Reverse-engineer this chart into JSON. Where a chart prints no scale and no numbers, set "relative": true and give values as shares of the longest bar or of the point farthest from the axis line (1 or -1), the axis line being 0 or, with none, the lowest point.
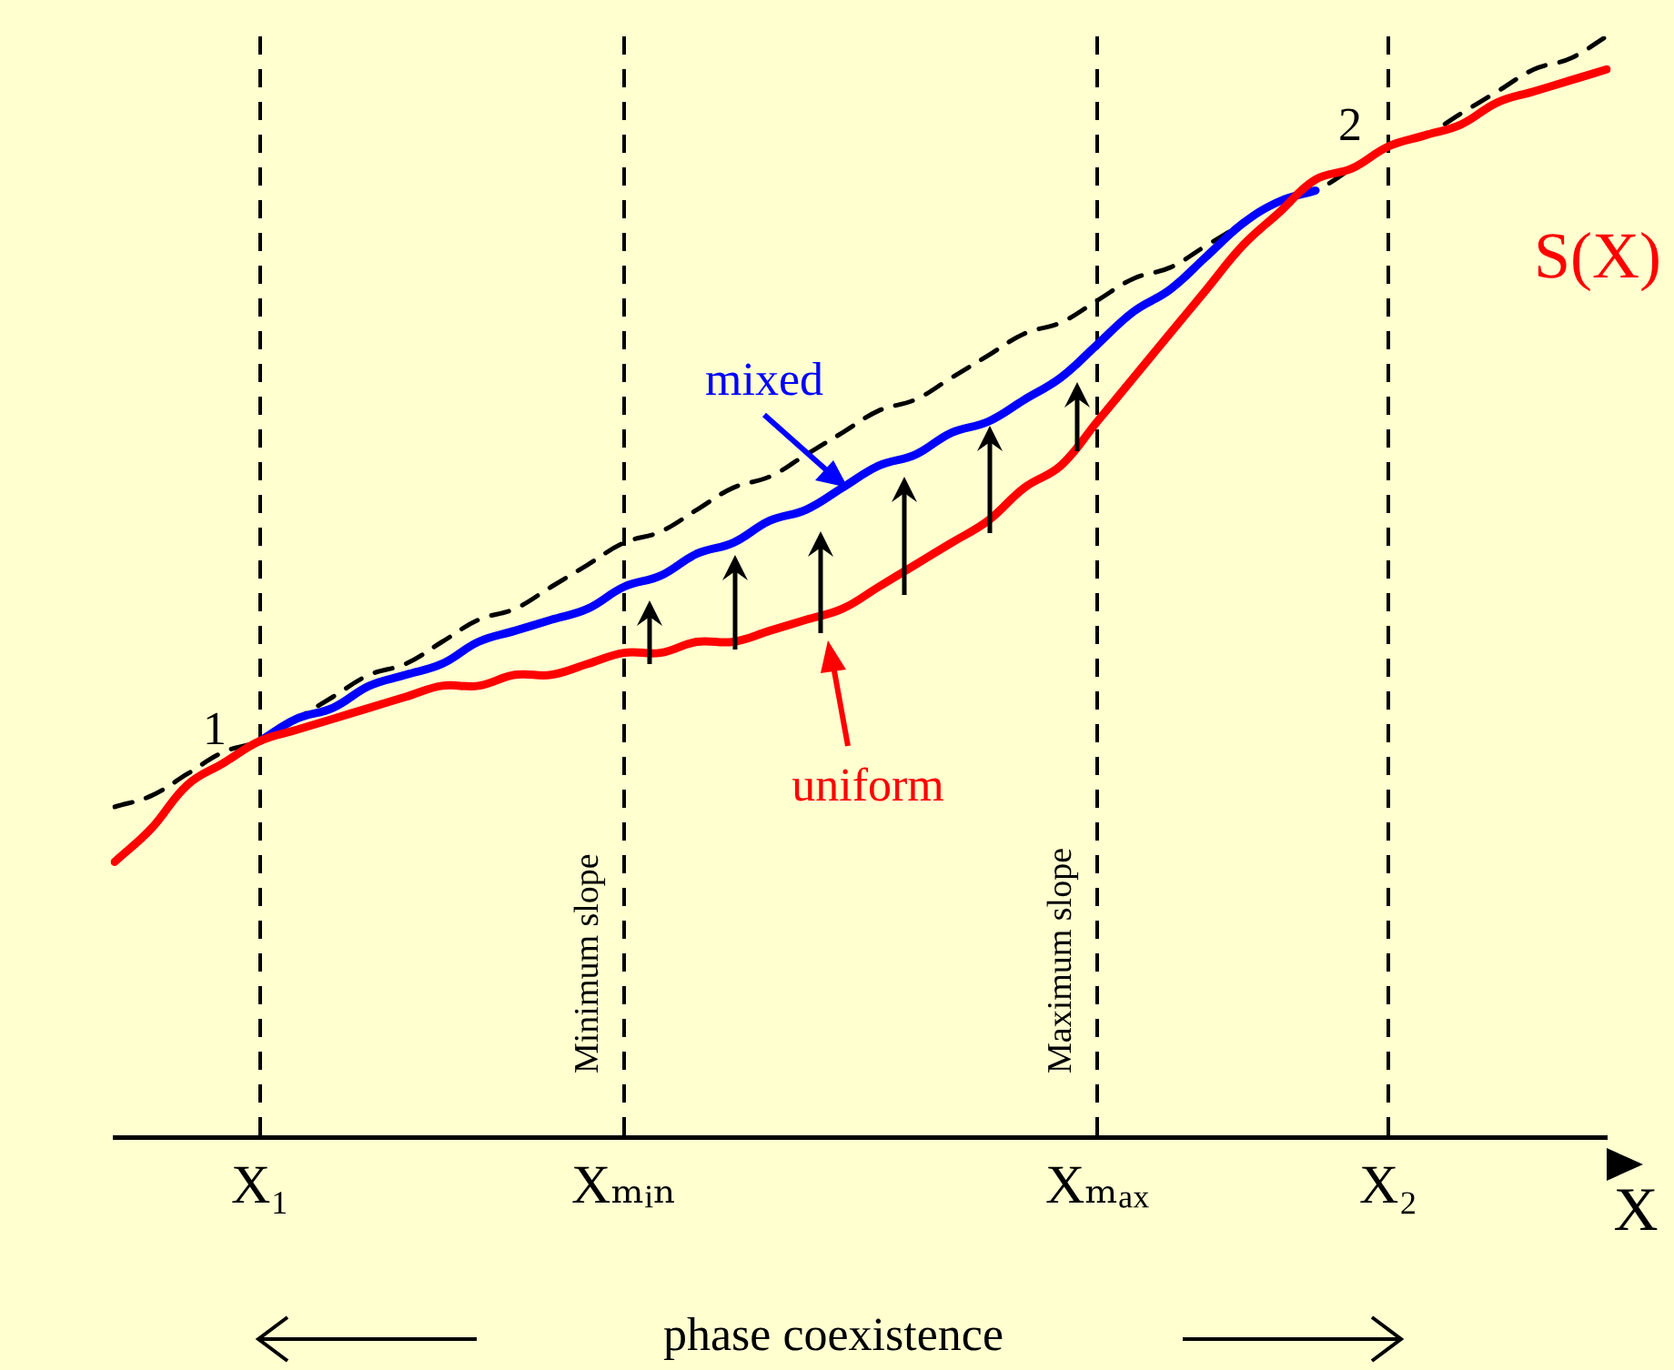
{
  "chart_data": {
    "type": "line",
    "relative": true,
    "xlabel": "X",
    "legend": false,
    "grid": false,
    "tick_labels": "x",
    "categories": [
      null,
      null,
      null,
      null,
      "X₁",
      null,
      null,
      null,
      null,
      null,
      null,
      null,
      null,
      null,
      "Xₘᵢₙ",
      null,
      null,
      null,
      null,
      null,
      null,
      null,
      null,
      null,
      null,
      null,
      null,
      "Xₘₐₓ",
      null,
      null,
      null,
      null,
      null,
      null,
      null,
      "X₂",
      null,
      null,
      null,
      null,
      null,
      null
    ],
    "series": [
      {
        "name": "S(X)",
        "color": "#ff0000",
        "values": [
          0.25,
          0.28,
          0.32,
          0.34,
          0.36,
          0.37,
          0.38,
          0.39,
          0.4,
          0.41,
          0.41,
          0.42,
          0.42,
          0.43,
          0.44,
          0.44,
          0.45,
          0.45,
          0.46,
          0.47,
          0.48,
          0.5,
          0.52,
          0.54,
          0.56,
          0.59,
          0.61,
          0.65,
          0.69,
          0.73,
          0.77,
          0.81,
          0.84,
          0.87,
          0.88,
          0.9,
          0.91,
          0.92,
          0.94,
          0.95,
          0.96,
          0.97
        ]
      },
      {
        "color": "#0000ff",
        "values": [
          null,
          null,
          null,
          null,
          0.36,
          0.38,
          0.39,
          0.41,
          0.42,
          0.43,
          0.45,
          0.46,
          0.47,
          0.48,
          0.5,
          0.51,
          0.53,
          0.54,
          0.56,
          0.57,
          0.59,
          0.61,
          0.62,
          0.64,
          0.65,
          0.67,
          0.69,
          0.72,
          0.75,
          0.77,
          0.8,
          0.83,
          0.85,
          0.86,
          null,
          null,
          null,
          null,
          null,
          null,
          null,
          null
        ]
      },
      {
        "color": "#000000",
        "line_style": "dashed",
        "values": [
          0.3,
          0.31,
          0.33,
          0.35,
          0.36,
          0.38,
          0.4,
          0.42,
          0.43,
          0.45,
          0.47,
          0.48,
          0.5,
          0.52,
          0.54,
          0.55,
          0.57,
          0.59,
          0.6,
          0.62,
          0.64,
          0.66,
          0.67,
          0.69,
          0.71,
          0.73,
          0.74,
          0.76,
          0.78,
          0.79,
          0.81,
          0.83,
          0.85,
          0.86,
          0.88,
          0.9,
          0.91,
          0.93,
          0.95,
          0.97,
          0.98,
          1.0
        ]
      }
    ],
    "ref_lines": [
      {
        "axis": "x",
        "value": "X₁",
        "line_style": "dashed",
        "color": "#000000"
      },
      {
        "axis": "x",
        "value": "Xₘᵢₙ",
        "label": "Minimum slope",
        "line_style": "dashed",
        "color": "#000000"
      },
      {
        "axis": "x",
        "value": "Xₘₐₓ",
        "label": "Maximum slope",
        "line_style": "dashed",
        "color": "#000000"
      },
      {
        "axis": "x",
        "value": "X₂",
        "line_style": "dashed",
        "color": "#000000"
      }
    ],
    "annotations": [
      "mixed",
      "uniform",
      "1",
      "2",
      "phase coexistence"
    ]
  }
}
